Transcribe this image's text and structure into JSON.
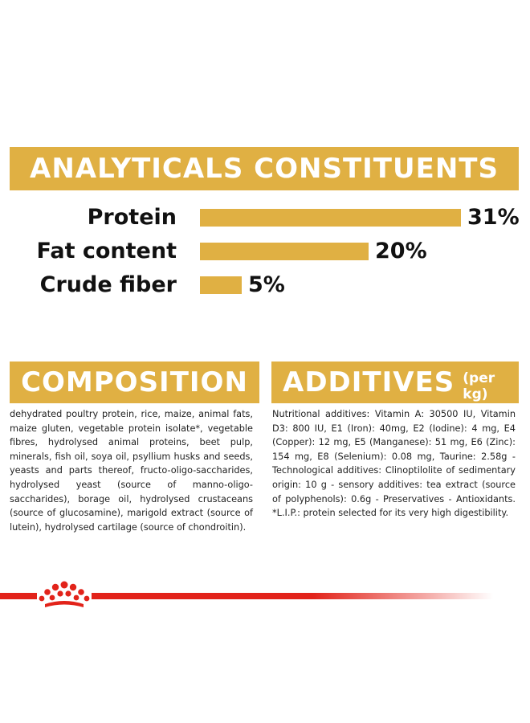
{
  "analytics": {
    "title": "ANALYTICALS CONSTITUENTS",
    "rows": [
      {
        "label": "Protein",
        "value": 31,
        "value_text": "31%"
      },
      {
        "label": "Fat content",
        "value": 20,
        "value_text": "20%"
      },
      {
        "label": "Crude fiber",
        "value": 5,
        "value_text": "5%"
      }
    ]
  },
  "composition": {
    "title": "COMPOSITION",
    "text": "dehydrated poultry protein, rice, maize, animal fats, maize gluten, vegetable protein isolate*, vegetable fibres, hydrolysed animal proteins, beet pulp, minerals, fish oil, soya oil, psyllium husks and seeds, yeasts and parts thereof, fructo-oligo-saccharides, hydrolysed yeast (source of manno-oligo-saccharides), borage oil, hydrolysed crustaceans (source of glucosamine), marigold extract (source of lutein), hydrolysed cartilage (source of chondroitin)."
  },
  "additives": {
    "title": "ADDITIVES",
    "title_suffix": "(per kg)",
    "text": "Nutritional additives: Vitamin A: 30500 IU, Vitamin D3: 800 IU, E1 (Iron): 40mg, E2 (Iodine): 4 mg, E4 (Copper): 12 mg, E5 (Manganese): 51 mg, E6 (Zinc): 154 mg, E8 (Selenium): 0.08 mg, Taurine: 2.58g - Technological additives: Clinoptilolite of sedimentary origin: 10 g - sensory additives: tea extract (source of polyphenols): 0.6g - Preservatives - Antioxidants. *L.I.P.: protein selected for its very high digestibility."
  },
  "colors": {
    "accent": "#e0b043",
    "brand_red": "#e2231a"
  },
  "footer": {
    "logo_icon": "royal-canin-crown-icon"
  }
}
